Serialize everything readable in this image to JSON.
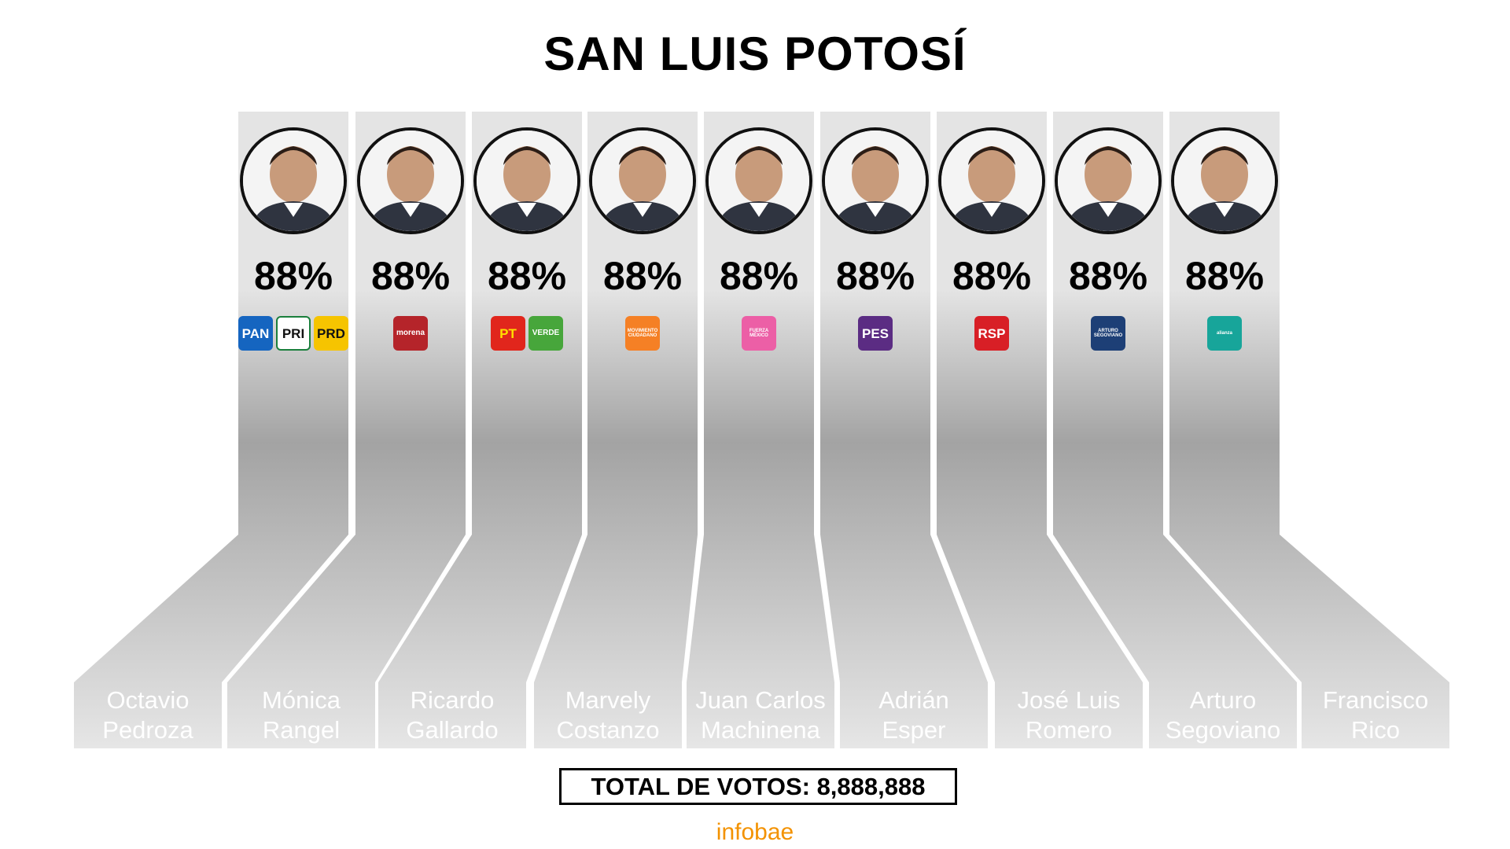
{
  "title": "SAN LUIS POTOSÍ",
  "colors": {
    "ribbon_top": "#e4e4e4",
    "ribbon_mid": "#a3a3a3",
    "ribbon_bottom": "#e6e6e6",
    "brand": "#f39200"
  },
  "candidates": [
    {
      "first": "Octavio",
      "last": "Pedroza",
      "percent": "88%",
      "parties": [
        {
          "label": "PAN",
          "bg": "#1565c0",
          "fg": "#ffffff"
        },
        {
          "label": "PRI",
          "bg": "#ffffff",
          "fg": "#111111"
        },
        {
          "label": "PRD",
          "bg": "#f6c400",
          "fg": "#111111"
        }
      ]
    },
    {
      "first": "Mónica",
      "last": "Rangel",
      "percent": "88%",
      "parties": [
        {
          "label": "morena",
          "bg": "#b5242a",
          "fg": "#ffffff"
        }
      ]
    },
    {
      "first": "Ricardo",
      "last": "Gallardo",
      "percent": "88%",
      "parties": [
        {
          "label": "PT",
          "bg": "#e1261c",
          "fg": "#ffde00"
        },
        {
          "label": "VERDE",
          "bg": "#47a63b",
          "fg": "#ffffff"
        }
      ]
    },
    {
      "first": "Marvely",
      "last": "Costanzo",
      "percent": "88%",
      "parties": [
        {
          "label": "MOVIMIENTO CIUDADANO",
          "bg": "#f58025",
          "fg": "#ffffff"
        }
      ]
    },
    {
      "first": "Juan Carlos",
      "last": "Machinena",
      "percent": "88%",
      "parties": [
        {
          "label": "FUERZA MÉXICO",
          "bg": "#ec5fa6",
          "fg": "#ffffff"
        }
      ]
    },
    {
      "first": "Adrián",
      "last": "Esper",
      "percent": "88%",
      "parties": [
        {
          "label": "PES",
          "bg": "#5b2c83",
          "fg": "#ffffff"
        }
      ]
    },
    {
      "first": "José Luis",
      "last": "Romero",
      "percent": "88%",
      "parties": [
        {
          "label": "RSP",
          "bg": "#d81f26",
          "fg": "#ffffff"
        }
      ]
    },
    {
      "first": "Arturo",
      "last": "Segoviano",
      "percent": "88%",
      "parties": [
        {
          "label": "ARTURO SEGOVIANO",
          "bg": "#1d3f76",
          "fg": "#ffffff"
        }
      ]
    },
    {
      "first": "Francisco",
      "last": "Rico",
      "percent": "88%",
      "parties": [
        {
          "label": "alianza",
          "bg": "#17a59a",
          "fg": "#ffffff"
        }
      ]
    }
  ],
  "total_label": "TOTAL DE VOTOS: 8,888,888",
  "brand": "infobae"
}
